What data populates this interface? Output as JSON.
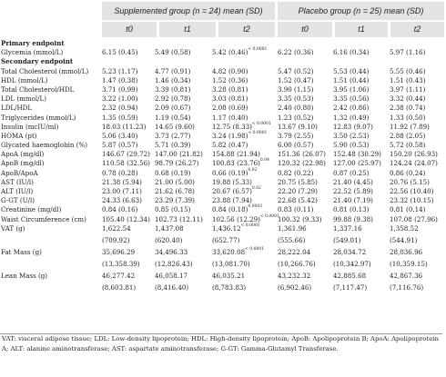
{
  "header": {
    "group1": "Supplemented group (n = 24) mean (SD)",
    "group2": "Placebo group (n = 25) mean (SD)",
    "times": [
      "t0",
      "t1",
      "t2",
      "t0",
      "t1",
      "t2"
    ]
  },
  "sections": {
    "primary": "Primary endpoint",
    "secondary": "Secondary endpoint"
  },
  "rows": [
    {
      "label": "Glycemia (mmol/L)",
      "v": [
        "6.15 (0.45)",
        "5.49 (0.58)",
        "5.42 (0.46)",
        "6.22 (0.36)",
        "6.16 (0.34)",
        "5.97 (1.16)"
      ],
      "sup": "< 0.0001"
    },
    {
      "label": "Total Cholesterol (mmol/L)",
      "v": [
        "5.23 (1.17)",
        "4.77 (0.91)",
        "4.82 (0.90)",
        "5.47 (0.52)",
        "5.53 (0.44)",
        "5.55 (0.46)"
      ]
    },
    {
      "label": "HDL (mmol/L)",
      "v": [
        "1.47 (0.38)",
        "1.46 (0.34)",
        "1.52 (0.36)",
        "1.52 (0.47)",
        "1.51 (0.44)",
        "1.51 (0.43)"
      ]
    },
    {
      "label": "Total Cholesterol/HDL",
      "v": [
        "3.71 (0.99)",
        "3.39 (0.81)",
        "3.28 (0.81)",
        "3.90 (1.15)",
        "3.95 (1.06)",
        "3.97 (1.11)"
      ]
    },
    {
      "label": "LDL (mmol/L)",
      "v": [
        "3.22 (1.00)",
        "2.92 (0.78)",
        "3.03 (0.81)",
        "3.35 (0.53)",
        "3.35 (0.56)",
        "3.32 (0.44)"
      ]
    },
    {
      "label": "LDL/HDL",
      "v": [
        "2.32 (0.94)",
        "2.09 (0.67)",
        "2.08 (0.69)",
        "2.40 (0.80)",
        "2.42 (0.86)",
        "2.38 (0.74)"
      ]
    },
    {
      "label": "Triglycerides (mmol/L)",
      "v": [
        "1.35 (0.59)",
        "1.19 (0.54)",
        "1.17 (0.40)",
        "1.23 (0.52)",
        "1.32 (0.49)",
        "1.33 (0.50)"
      ]
    },
    {
      "label": "Insulin (mcIU/ml)",
      "v": [
        "18.03 (11.23)",
        "14.65 (9.60)",
        "12.75 (8.33)",
        "13.67 (9.10)",
        "12.83 (9.07)",
        "11.92 (7.89)"
      ],
      "sup": "< 0.0001"
    },
    {
      "label": "HOMA (pt)",
      "v": [
        "5.06 (3.40)",
        "3.73 (2.77)",
        "3.24 (1.98)",
        "3.79 (2.55)",
        "3.50 (2.53)",
        "2.88 (2.05)"
      ],
      "sup": "< 0.0001"
    },
    {
      "label": "Glycated haemoglobin (%)",
      "v": [
        "5.87 (0.57)",
        "5.71 (0.39)",
        "5.82 (0.47)",
        "6.00 (0.57)",
        "5.90 (0.53)",
        "5.72 (0.58)"
      ]
    },
    {
      "label": "ApoA (mg/dl)",
      "v": [
        "146.67 (29.72)",
        "147.00 (21.82)",
        "154.88 (21.94)",
        "151.36 (26.07)",
        "152.48 (30.29)",
        "150.20 (26.93)"
      ]
    },
    {
      "label": "ApoB (mg/dl)",
      "v": [
        "110.58 (32.56)",
        "98.79 (26.27)",
        "100.83 (23.76)",
        "120.32 (22.98)",
        "127.00 (25.97)",
        "124.24 (24.07)"
      ],
      "sup": "0.04"
    },
    {
      "label": "ApoB/ApoA",
      "v": [
        "0.78 (0.28)",
        "0.68 (0.19)",
        "0.66 (0.19)",
        "0.82 (0.22)",
        "0.87 (0.25)",
        "0.86 (0.24)"
      ],
      "sup": "0.02"
    },
    {
      "label": "AST (IU/l)",
      "v": [
        "21.38 (5.94)",
        "21.00 (5.00)",
        "19.88 (5.33)",
        "20.75 (5.85)",
        "21.40 (4.45)",
        "20.76 (5.15)"
      ]
    },
    {
      "label": "ALT (IU/l)",
      "v": [
        "23.00 (7.11)",
        "21.62 (6.78)",
        "20.67 (6.57)",
        "22.20 (7.29)",
        "22.52 (5.89)",
        "22.56 (10.40)"
      ],
      "sup": "0.02"
    },
    {
      "label": "G-GT (U/l)",
      "v": [
        "24.33 (6.63)",
        "23.29 (7.39)",
        "23.88 (7.94)",
        "22.68 (5.42)",
        "21.40 (7.19)",
        "23.32 (10.15)"
      ]
    },
    {
      "label": "Creatinine (mg/dl)",
      "v": [
        "0.84 (0.16)",
        "0.85 (0.15)",
        "0.84 (0.18)",
        "0.83 (0.11)",
        "0.81 (0.13)",
        "0.81 (0.14)"
      ],
      "sup": "0.0003"
    },
    {
      "label": "Waist Circumference (cm)",
      "v": [
        "105.40 (12.34)",
        "102.73 (12.11)",
        "102.56 (12.29)",
        "100.32 (9.33)",
        "99.88 (9.38)",
        "107.08 (27.96)"
      ],
      "sup": "< 0.0001"
    }
  ],
  "tallrows": [
    {
      "label": "VAT (g)",
      "v": [
        "1,622.54",
        "1,437.08",
        "1,436.12",
        "1,361.96",
        "1,337.16",
        "1,358.52"
      ],
      "sd": [
        "(709.92)",
        "(620.40)",
        "(652.77)",
        "(555.66)",
        "(549.01)",
        "(544.91)"
      ],
      "sup": "< 0.0001"
    },
    {
      "label": "Fat Mass (g)",
      "v": [
        "35,696.29",
        "34,496.33",
        "33,620.08",
        "28,222.04",
        "28,034.72",
        "28,036.96"
      ],
      "sd": [
        "(13,358.39)",
        "(12,826.43)",
        "(13,081.70)",
        "(10,266.76)",
        "(10,342.97)",
        "(10,359.15)"
      ],
      "sup": "< 0.0001"
    },
    {
      "label": "Lean Mass (g)",
      "v": [
        "46,277.42",
        "46,058.17",
        "46,035.21",
        "43,232.32",
        "42,885.68",
        "42,867.36"
      ],
      "sd": [
        "(8,603.81)",
        "(8,416.40)",
        "(8,783.83)",
        "(6,902.46)",
        "(7,117.47)",
        "(7,116.76)"
      ]
    }
  ],
  "footnote": "VAT: visceral adipose tissue; LDL: Low-density lipoprotein; HDL: High-density lipoprotein; ApoB: Apolipoprotein B; ApoA: Apolipoprotein A; ALT: alanine aminotransferase; AST: aspartate aminotransferase; G-GT: Gamma-Glutamyl Transferase."
}
